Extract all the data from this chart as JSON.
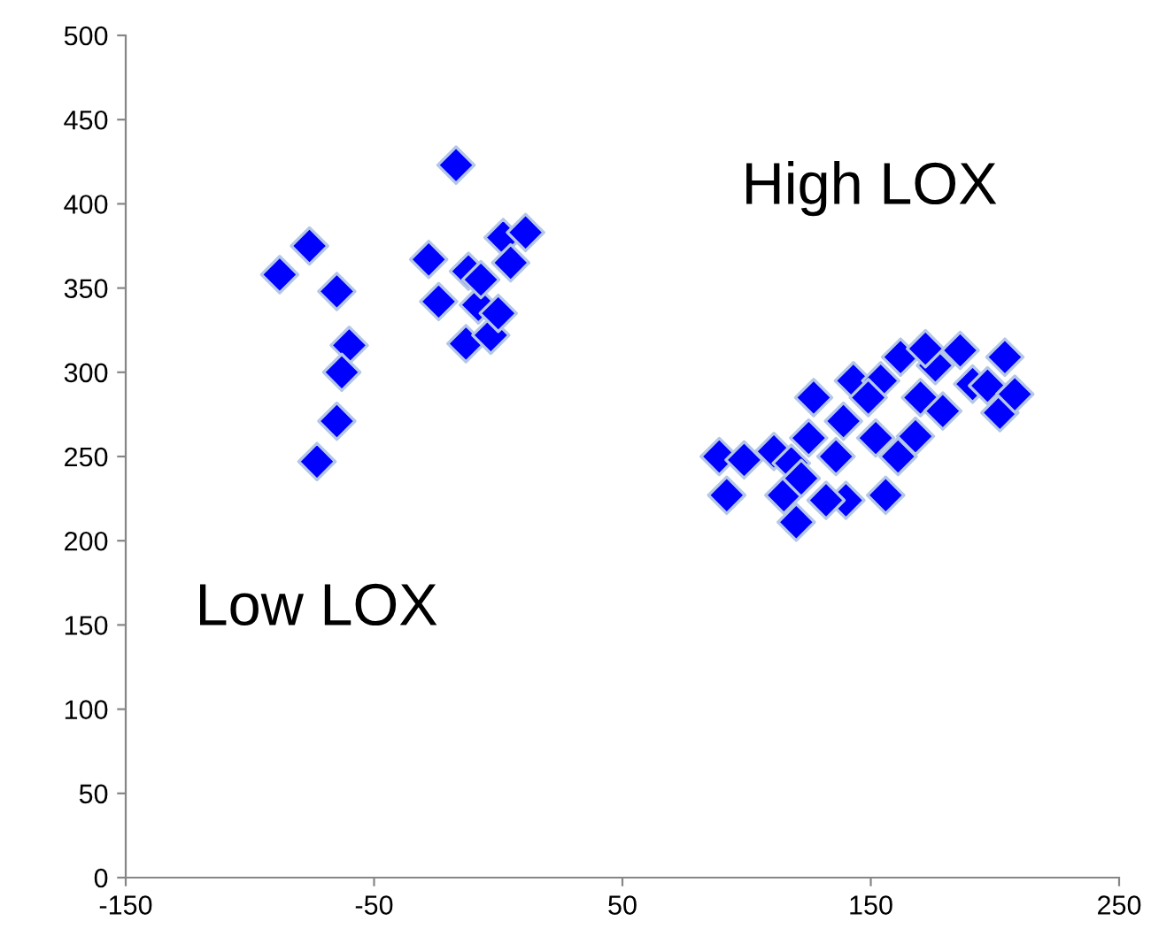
{
  "chart_data": {
    "type": "scatter",
    "series": [
      {
        "color": "#0000ff",
        "x": [
          -88,
          -76,
          -65,
          -60,
          -63,
          -65,
          -73,
          -28,
          -24,
          -17,
          -13,
          -12,
          -8,
          -3,
          0,
          2,
          5,
          11,
          -7,
          89,
          99,
          92,
          111,
          118,
          115,
          122,
          120,
          127,
          125,
          136,
          140,
          132,
          139,
          143,
          152,
          154,
          156,
          162,
          161,
          168,
          170,
          176,
          179,
          186,
          191,
          197,
          204,
          202,
          208,
          172,
          149
        ],
        "values": [
          358,
          375,
          348,
          316,
          300,
          271,
          247,
          367,
          342,
          423,
          317,
          360,
          340,
          322,
          335,
          380,
          365,
          383,
          355,
          250,
          248,
          227,
          253,
          246,
          227,
          237,
          211,
          285,
          261,
          250,
          224,
          224,
          271,
          295,
          261,
          295,
          227,
          309,
          250,
          262,
          285,
          304,
          277,
          313,
          293,
          292,
          309,
          276,
          287,
          314,
          285
        ]
      }
    ],
    "marker": "diamond",
    "xlim": [
      -150,
      250
    ],
    "xticks": [
      -150,
      -50,
      50,
      150,
      250
    ],
    "ylim": [
      0,
      500
    ],
    "yticks": [
      0,
      50,
      100,
      150,
      200,
      250,
      300,
      350,
      400,
      450,
      500
    ],
    "annotations": [
      "High LOX",
      "Low LOX"
    ],
    "grid": false,
    "legend": false
  }
}
